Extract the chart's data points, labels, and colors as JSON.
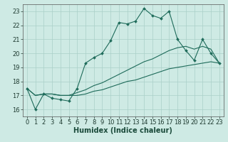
{
  "title": "",
  "xlabel": "Humidex (Indice chaleur)",
  "ylabel": "",
  "bg_color": "#ceeae4",
  "grid_color": "#aacfc8",
  "line_color": "#1e6b5a",
  "x_values": [
    0,
    1,
    2,
    3,
    4,
    5,
    6,
    7,
    8,
    9,
    10,
    11,
    12,
    13,
    14,
    15,
    16,
    17,
    18,
    19,
    20,
    21,
    22,
    23
  ],
  "main_y": [
    17.5,
    16.0,
    17.1,
    16.8,
    16.7,
    16.6,
    17.5,
    19.3,
    19.7,
    20.0,
    20.9,
    22.2,
    22.1,
    22.3,
    23.2,
    22.7,
    22.5,
    23.0,
    21.0,
    20.2,
    19.5,
    21.0,
    20.0,
    19.3
  ],
  "line2_y": [
    17.5,
    17.0,
    17.1,
    17.1,
    17.0,
    17.0,
    17.2,
    17.4,
    17.7,
    17.9,
    18.2,
    18.5,
    18.8,
    19.1,
    19.4,
    19.6,
    19.9,
    20.2,
    20.4,
    20.5,
    20.3,
    20.5,
    20.3,
    19.3
  ],
  "line3_y": [
    17.5,
    17.0,
    17.1,
    17.1,
    17.0,
    17.0,
    17.0,
    17.1,
    17.3,
    17.4,
    17.6,
    17.8,
    18.0,
    18.1,
    18.3,
    18.5,
    18.7,
    18.9,
    19.0,
    19.1,
    19.2,
    19.3,
    19.4,
    19.3
  ],
  "ylim": [
    15.5,
    23.5
  ],
  "yticks": [
    16,
    17,
    18,
    19,
    20,
    21,
    22,
    23
  ],
  "xlim": [
    -0.5,
    23.5
  ],
  "xticks": [
    0,
    1,
    2,
    3,
    4,
    5,
    6,
    7,
    8,
    9,
    10,
    11,
    12,
    13,
    14,
    15,
    16,
    17,
    18,
    19,
    20,
    21,
    22,
    23
  ],
  "tick_fontsize": 6,
  "xlabel_fontsize": 7
}
